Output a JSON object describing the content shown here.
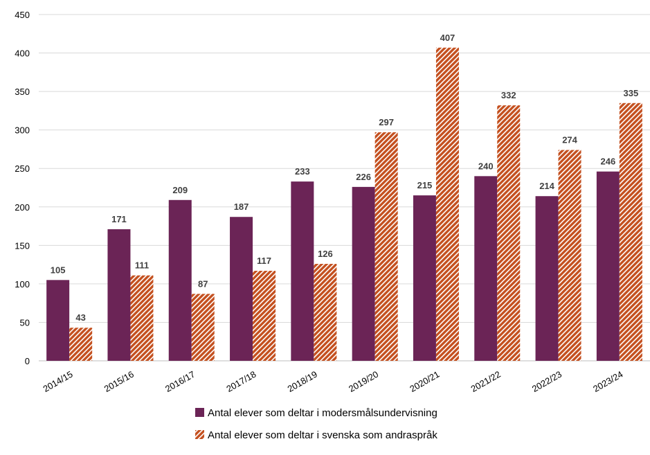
{
  "chart_data": {
    "type": "bar",
    "title": "",
    "xlabel": "",
    "ylabel": "",
    "ylim": [
      0,
      450
    ],
    "y_ticks": [
      0,
      50,
      100,
      150,
      200,
      250,
      300,
      350,
      400,
      450
    ],
    "grid": true,
    "legend_position": "bottom",
    "categories": [
      "2014/15",
      "2015/16",
      "2016/17",
      "2017/18",
      "2018/19",
      "2019/20",
      "2020/21",
      "2021/22",
      "2022/23",
      "2023/24"
    ],
    "series": [
      {
        "name": "Antal elever som deltar i modersmålsundervisning",
        "color": "#6b2456",
        "fill": "solid",
        "values": [
          105,
          171,
          209,
          187,
          233,
          226,
          215,
          240,
          214,
          246
        ]
      },
      {
        "name": "Antal elever som deltar i svenska som andraspråk",
        "color": "#c4501f",
        "fill": "hatched",
        "values": [
          43,
          111,
          87,
          117,
          126,
          297,
          407,
          332,
          274,
          335
        ]
      }
    ]
  }
}
